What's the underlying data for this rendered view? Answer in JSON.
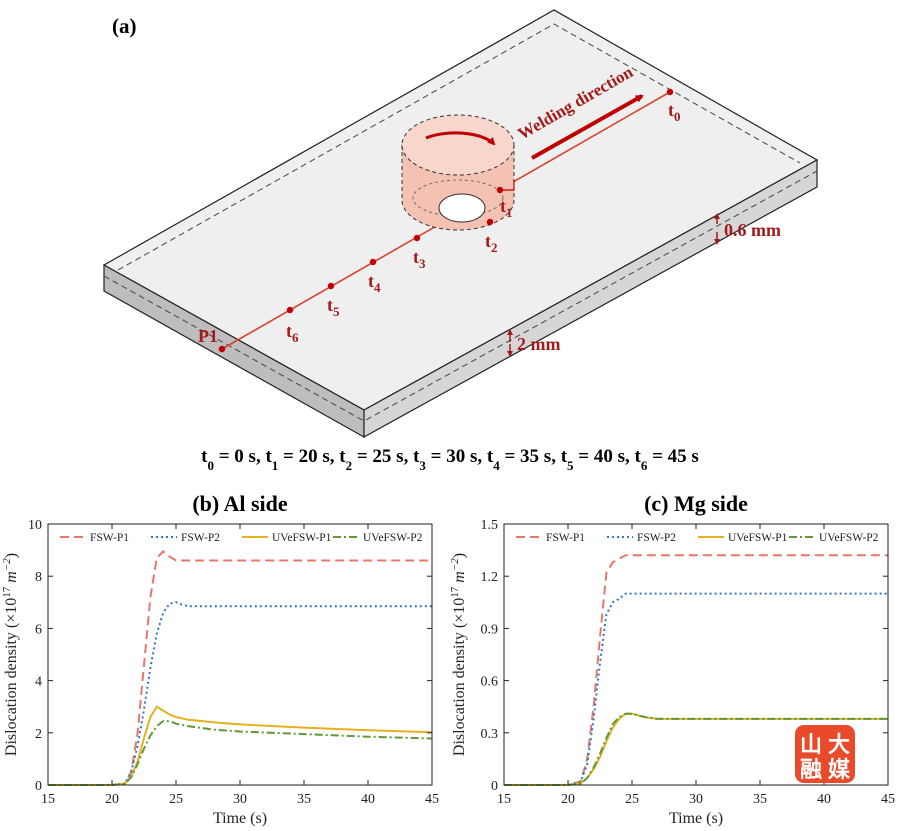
{
  "panel_a": {
    "label": "(a)",
    "welding_direction": "Welding direction",
    "thickness_plate": "2 mm",
    "thickness_layer": "0.6 mm",
    "point_label": "P1",
    "time_points": [
      {
        "base": "t",
        "sub": "0"
      },
      {
        "base": "t",
        "sub": "1"
      },
      {
        "base": "t",
        "sub": "2"
      },
      {
        "base": "t",
        "sub": "3"
      },
      {
        "base": "t",
        "sub": "4"
      },
      {
        "base": "t",
        "sub": "5"
      },
      {
        "base": "t",
        "sub": "6"
      }
    ],
    "caption_parts": [
      {
        "t": "t"
      },
      {
        "s": "0"
      },
      {
        "t": " = 0 s, t"
      },
      {
        "s": "1"
      },
      {
        "t": " = 20 s, t"
      },
      {
        "s": "2"
      },
      {
        "t": " = 25 s, t"
      },
      {
        "s": "3"
      },
      {
        "t": " = 30 s, t"
      },
      {
        "s": "4"
      },
      {
        "t": " = 35 s, t"
      },
      {
        "s": "5"
      },
      {
        "t": " = 40 s, t"
      },
      {
        "s": "6"
      },
      {
        "t": " = 45 s"
      }
    ],
    "colors": {
      "path": "#d9442f",
      "arrow": "#c00000",
      "tool": "#f4c2b3",
      "text": "#a31a1a"
    }
  },
  "watermark": {
    "chars": [
      "山",
      "大",
      "融",
      "媒"
    ],
    "color": "#e84a2a"
  },
  "chart_data": [
    {
      "type": "line",
      "title": "(b) Al side",
      "xlabel": "Time (s)",
      "ylabel_parts": [
        "Dislocation density (×10",
        "17",
        " m",
        "−2",
        ")"
      ],
      "xlim": [
        15,
        45
      ],
      "ylim": [
        0,
        10
      ],
      "xticks": [
        15,
        20,
        25,
        30,
        35,
        40,
        45
      ],
      "yticks": [
        0,
        2,
        4,
        6,
        8,
        10
      ],
      "ytick_labels": [
        "0",
        "2",
        "4",
        "6",
        "8",
        "10"
      ],
      "legend": "top",
      "grid": false,
      "series": [
        {
          "name": "FSW-P1",
          "color": "#e8776a",
          "dash": "9,5",
          "x": [
            15,
            20,
            21,
            21.5,
            22,
            22.5,
            23,
            23.5,
            24,
            24.5,
            25,
            26,
            30,
            35,
            40,
            45
          ],
          "y": [
            0,
            0,
            0.05,
            0.5,
            2.0,
            4.6,
            7.2,
            8.7,
            8.95,
            8.75,
            8.6,
            8.6,
            8.6,
            8.6,
            8.6,
            8.6
          ]
        },
        {
          "name": "FSW-P2",
          "color": "#2f74c9",
          "dash": "2,3",
          "x": [
            15,
            20,
            21,
            21.5,
            22,
            22.5,
            23,
            23.5,
            24,
            24.5,
            25,
            25.5,
            26,
            30,
            35,
            40,
            45
          ],
          "y": [
            0,
            0,
            0.05,
            0.5,
            1.5,
            2.9,
            4.5,
            5.8,
            6.6,
            6.95,
            7.0,
            6.9,
            6.85,
            6.85,
            6.85,
            6.85,
            6.85
          ]
        },
        {
          "name": "UVeFSW-P1",
          "color": "#e6b020",
          "dash": "",
          "x": [
            15,
            20,
            21,
            21.5,
            22,
            22.5,
            23,
            23.5,
            24,
            24.5,
            25,
            26,
            28,
            30,
            35,
            40,
            45
          ],
          "y": [
            0,
            0,
            0.05,
            0.3,
            0.9,
            1.8,
            2.6,
            3.0,
            2.85,
            2.7,
            2.6,
            2.5,
            2.4,
            2.32,
            2.2,
            2.1,
            2.02
          ]
        },
        {
          "name": "UVeFSW-P2",
          "color": "#5e9a3a",
          "dash": "8,3,2,3",
          "x": [
            15,
            20,
            21,
            21.5,
            22,
            22.5,
            23,
            23.5,
            24,
            24.5,
            25,
            26,
            28,
            30,
            35,
            40,
            45
          ],
          "y": [
            0,
            0,
            0.05,
            0.3,
            0.8,
            1.4,
            1.9,
            2.25,
            2.45,
            2.45,
            2.35,
            2.25,
            2.12,
            2.05,
            1.95,
            1.85,
            1.78
          ]
        }
      ]
    },
    {
      "type": "line",
      "title": "(c) Mg side",
      "xlabel": "Time (s)",
      "ylabel_parts": [
        "Dislocation density (×10",
        "17",
        " m",
        "−2",
        ")"
      ],
      "xlim": [
        15,
        45
      ],
      "ylim": [
        0,
        1.5
      ],
      "xticks": [
        15,
        20,
        25,
        30,
        35,
        40,
        45
      ],
      "yticks": [
        0,
        0.3,
        0.6,
        0.9,
        1.2,
        1.5
      ],
      "ytick_labels": [
        "0",
        "0.3",
        "0.6",
        "0.9",
        "1.2",
        "1.5"
      ],
      "legend": "top",
      "grid": false,
      "series": [
        {
          "name": "FSW-P1",
          "color": "#e8776a",
          "dash": "9,5",
          "x": [
            15,
            20,
            21,
            21.5,
            22,
            22.5,
            23,
            23.5,
            24,
            24.5,
            25,
            26,
            30,
            35,
            40,
            45
          ],
          "y": [
            0,
            0,
            0.02,
            0.15,
            0.45,
            0.85,
            1.22,
            1.28,
            1.3,
            1.32,
            1.32,
            1.32,
            1.32,
            1.32,
            1.32,
            1.32
          ]
        },
        {
          "name": "FSW-P2",
          "color": "#2f74c9",
          "dash": "2,3",
          "x": [
            15,
            20,
            21,
            21.5,
            22,
            22.5,
            23,
            23.5,
            24,
            24.5,
            25,
            26,
            30,
            35,
            40,
            45
          ],
          "y": [
            0,
            0,
            0.02,
            0.12,
            0.38,
            0.7,
            0.98,
            1.05,
            1.07,
            1.1,
            1.1,
            1.1,
            1.1,
            1.1,
            1.1,
            1.1
          ]
        },
        {
          "name": "UVeFSW-P1",
          "color": "#e6b020",
          "dash": "",
          "x": [
            15,
            20,
            21,
            21.5,
            22,
            22.5,
            23,
            23.5,
            24,
            24.5,
            25,
            26,
            27,
            30,
            35,
            40,
            45
          ],
          "y": [
            0,
            0,
            0.01,
            0.04,
            0.09,
            0.16,
            0.25,
            0.33,
            0.38,
            0.41,
            0.41,
            0.39,
            0.38,
            0.38,
            0.38,
            0.38,
            0.38
          ]
        },
        {
          "name": "UVeFSW-P2",
          "color": "#5e9a3a",
          "dash": "8,3,2,3",
          "x": [
            15,
            20,
            21,
            21.5,
            22,
            22.5,
            23,
            23.5,
            24,
            24.5,
            25,
            26,
            27,
            30,
            35,
            40,
            45
          ],
          "y": [
            0,
            0,
            0.01,
            0.04,
            0.1,
            0.18,
            0.27,
            0.35,
            0.39,
            0.41,
            0.41,
            0.39,
            0.38,
            0.38,
            0.38,
            0.38,
            0.38
          ]
        }
      ]
    }
  ]
}
